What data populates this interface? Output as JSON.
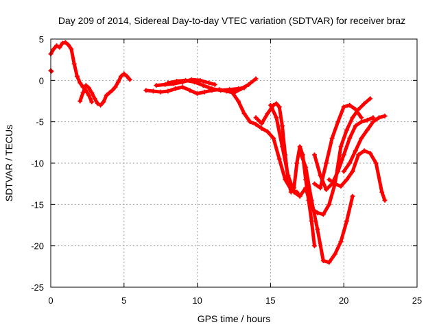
{
  "chart_data": {
    "type": "scatter",
    "title": "Day 209 of 2014, Sidereal Day-to-day VTEC variation (SDTVAR) for receiver braz",
    "xlabel": "GPS time / hours",
    "ylabel": "SDTVAR / TECUs",
    "xlim": [
      0,
      25
    ],
    "ylim": [
      -25,
      5
    ],
    "x_ticks": [
      0,
      5,
      10,
      15,
      20,
      25
    ],
    "y_ticks": [
      5,
      0,
      -5,
      -10,
      -15,
      -20,
      -25
    ],
    "grid": true,
    "legend": "none",
    "marker": "plus",
    "series_color": "#ff0000",
    "series": [
      {
        "x": [
          0.0,
          0.05
        ],
        "y": [
          1.2,
          1.1
        ]
      },
      {
        "x": [
          0.0,
          0.2,
          0.4,
          0.6,
          0.8,
          1.0,
          1.2,
          1.4,
          1.6,
          1.8,
          2.0,
          2.2,
          2.4,
          2.6,
          2.8
        ],
        "y": [
          3.2,
          3.8,
          4.2,
          4.0,
          4.5,
          4.6,
          4.3,
          3.8,
          2.0,
          0.5,
          -0.3,
          -0.8,
          -1.2,
          -1.8,
          -2.6
        ]
      },
      {
        "x": [
          2.0,
          2.2,
          2.4,
          2.6,
          2.8,
          3.0,
          3.2,
          3.4,
          3.6,
          3.8,
          4.0,
          4.2,
          4.4,
          4.6,
          4.8,
          5.0,
          5.2,
          5.4
        ],
        "y": [
          -2.5,
          -1.5,
          -0.6,
          -0.9,
          -1.5,
          -2.2,
          -2.8,
          -3.0,
          -2.6,
          -1.8,
          -1.5,
          -1.2,
          -0.8,
          -0.2,
          0.5,
          0.8,
          0.5,
          0.1
        ]
      },
      {
        "x": [
          6.5,
          7.0,
          7.5,
          8.0,
          8.5,
          9.0,
          9.5,
          10.0,
          10.5,
          11.0,
          11.5,
          12.0,
          12.5,
          13.0,
          13.5,
          14.0
        ],
        "y": [
          -1.2,
          -1.3,
          -1.4,
          -1.3,
          -1.0,
          -0.8,
          -1.2,
          -1.6,
          -1.4,
          -1.2,
          -1.1,
          -1.3,
          -1.5,
          -1.0,
          -0.5,
          0.2
        ]
      },
      {
        "x": [
          7.2,
          7.8,
          8.4,
          9.0,
          9.6,
          10.2,
          10.8,
          11.2
        ],
        "y": [
          -0.6,
          -0.5,
          -0.4,
          -0.2,
          0.1,
          0.0,
          -0.3,
          -0.5
        ]
      },
      {
        "x": [
          8.0,
          8.6,
          9.2,
          9.8,
          10.4,
          11.0,
          11.6,
          12.2,
          12.8,
          13.2
        ],
        "y": [
          -0.3,
          -0.1,
          0.0,
          -0.2,
          -0.6,
          -1.0,
          -1.2,
          -1.1,
          -1.0,
          -0.9
        ]
      },
      {
        "x": [
          12.4,
          12.8,
          13.2,
          13.6,
          14.0,
          14.4,
          14.8,
          15.2,
          15.6,
          16.0,
          16.4,
          16.8,
          17.0
        ],
        "y": [
          -1.5,
          -2.5,
          -4.0,
          -5.0,
          -5.3,
          -5.8,
          -6.2,
          -7.0,
          -9.5,
          -12.0,
          -13.2,
          -13.5,
          -14.0
        ]
      },
      {
        "x": [
          14.0,
          14.4,
          14.8,
          15.2,
          15.4,
          15.6,
          15.8,
          16.0,
          16.2,
          16.4,
          16.6,
          16.8,
          17.0,
          17.2,
          17.4,
          17.6,
          17.8,
          18.0
        ],
        "y": [
          -4.5,
          -5.2,
          -4.0,
          -3.0,
          -2.8,
          -3.2,
          -5.5,
          -9.0,
          -12.0,
          -13.5,
          -13.0,
          -10.0,
          -8.0,
          -9.0,
          -12.0,
          -14.5,
          -17.0,
          -20.0
        ]
      },
      {
        "x": [
          15.0,
          15.4,
          15.8,
          16.2,
          16.6,
          17.0,
          17.4,
          17.8,
          18.2,
          18.6,
          19.0,
          19.4,
          19.8,
          20.2,
          20.6,
          21.0,
          21.4,
          21.8
        ],
        "y": [
          -3.0,
          -4.5,
          -8.0,
          -11.5,
          -13.5,
          -14.0,
          -13.0,
          -15.5,
          -16.0,
          -16.2,
          -15.0,
          -12.5,
          -8.0,
          -6.0,
          -4.5,
          -3.5,
          -2.8,
          -2.2
        ]
      },
      {
        "x": [
          17.0,
          17.4,
          17.8,
          18.2,
          18.6,
          19.0,
          19.4,
          19.8,
          20.2,
          20.6
        ],
        "y": [
          -8.5,
          -10.5,
          -14.5,
          -18.0,
          -21.8,
          -22.0,
          -21.0,
          -19.5,
          -17.0,
          -14.0
        ]
      },
      {
        "x": [
          18.0,
          18.4,
          18.8,
          19.2,
          19.6,
          20.0,
          20.4,
          20.8,
          21.2
        ],
        "y": [
          -12.5,
          -13.0,
          -10.0,
          -7.0,
          -5.0,
          -3.2,
          -3.0,
          -3.5,
          -4.5
        ]
      },
      {
        "x": [
          18.0,
          18.4,
          18.8,
          19.2,
          19.6,
          20.0,
          20.4,
          20.8,
          21.2,
          21.6,
          22.0
        ],
        "y": [
          -9.0,
          -11.5,
          -13.2,
          -12.5,
          -11.0,
          -9.0,
          -7.0,
          -5.5,
          -5.0,
          -4.8,
          -4.5
        ]
      },
      {
        "x": [
          19.0,
          19.4,
          19.8,
          20.2,
          20.6,
          21.0,
          21.4,
          21.8,
          22.2,
          22.6,
          22.8
        ],
        "y": [
          -12.0,
          -12.5,
          -12.8,
          -12.0,
          -11.0,
          -9.0,
          -8.5,
          -8.8,
          -10.0,
          -13.5,
          -14.5
        ]
      },
      {
        "x": [
          20.0,
          20.4,
          20.8,
          21.2,
          21.6,
          22.0,
          22.4,
          22.8
        ],
        "y": [
          -11.0,
          -10.0,
          -8.5,
          -7.0,
          -6.0,
          -5.0,
          -4.5,
          -4.3
        ]
      }
    ]
  }
}
